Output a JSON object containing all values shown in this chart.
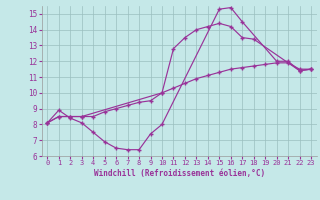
{
  "xlabel": "Windchill (Refroidissement éolien,°C)",
  "xlim": [
    -0.5,
    23.5
  ],
  "ylim": [
    6,
    15.5
  ],
  "xticks": [
    0,
    1,
    2,
    3,
    4,
    5,
    6,
    7,
    8,
    9,
    10,
    11,
    12,
    13,
    14,
    15,
    16,
    17,
    18,
    19,
    20,
    21,
    22,
    23
  ],
  "yticks": [
    6,
    7,
    8,
    9,
    10,
    11,
    12,
    13,
    14,
    15
  ],
  "bg_color": "#c5e8e8",
  "line_color": "#993399",
  "line1_x": [
    0,
    1,
    2,
    3,
    4,
    5,
    6,
    7,
    8,
    9,
    10,
    15,
    16,
    17,
    20,
    21,
    22,
    23
  ],
  "line1_y": [
    8.1,
    8.9,
    8.4,
    8.1,
    7.5,
    6.9,
    6.5,
    6.4,
    6.4,
    7.4,
    8.0,
    15.3,
    15.4,
    14.5,
    12.0,
    12.0,
    11.4,
    11.5
  ],
  "line2_x": [
    0,
    1,
    2,
    3,
    10,
    11,
    12,
    13,
    14,
    15,
    16,
    17,
    18,
    22,
    23
  ],
  "line2_y": [
    8.1,
    8.5,
    8.5,
    8.5,
    10.0,
    12.8,
    13.5,
    14.0,
    14.2,
    14.4,
    14.2,
    13.5,
    13.4,
    11.4,
    11.5
  ],
  "line3_x": [
    0,
    1,
    2,
    3,
    4,
    5,
    6,
    7,
    8,
    9,
    10,
    11,
    12,
    13,
    14,
    15,
    16,
    17,
    18,
    19,
    20,
    21,
    22,
    23
  ],
  "line3_y": [
    8.1,
    8.5,
    8.5,
    8.5,
    8.5,
    8.8,
    9.0,
    9.2,
    9.4,
    9.5,
    10.0,
    10.3,
    10.6,
    10.9,
    11.1,
    11.3,
    11.5,
    11.6,
    11.7,
    11.8,
    11.9,
    11.9,
    11.5,
    11.5
  ]
}
